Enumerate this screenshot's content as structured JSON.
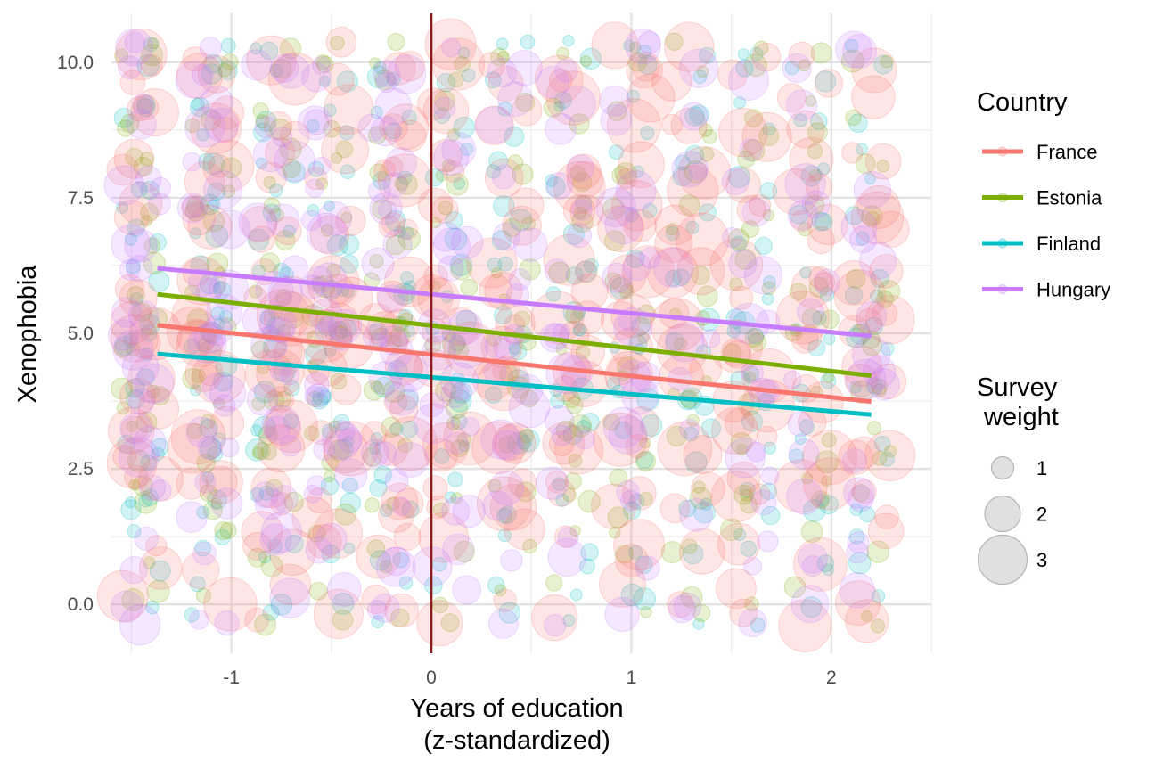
{
  "chart_data": {
    "type": "scatter",
    "title": "",
    "xlabel_line1": "Years of education",
    "xlabel_line2": "(z-standardized)",
    "ylabel": "Xenophobia",
    "xlim": [
      -1.6,
      2.5
    ],
    "ylim": [
      -0.9,
      10.9
    ],
    "x_ticks": [
      -1,
      0,
      1,
      2
    ],
    "x_tick_labels": [
      "-1",
      "0",
      "1",
      "2"
    ],
    "y_ticks": [
      0,
      2.5,
      5,
      7.5,
      10
    ],
    "y_tick_labels": [
      "0.0",
      "2.5",
      "5.0",
      "7.5",
      "10.0"
    ],
    "x_education_levels": [
      -1.45,
      -1.1,
      -0.78,
      -0.5,
      -0.2,
      0.1,
      0.4,
      0.7,
      1.0,
      1.3,
      1.6,
      1.9,
      2.2
    ],
    "y_xenophobia_levels": [
      0,
      1,
      2,
      3,
      4,
      5,
      6,
      7,
      8,
      9,
      10
    ],
    "vertical_reference_line": {
      "x": 0,
      "color": "#8B1A1A"
    },
    "series": [
      {
        "name": "France",
        "color": "#F8766D",
        "fit_line": {
          "x": [
            -1.37,
            2.2
          ],
          "y": [
            5.15,
            3.74
          ]
        }
      },
      {
        "name": "Estonia",
        "color": "#7CAE00",
        "fit_line": {
          "x": [
            -1.37,
            2.2
          ],
          "y": [
            5.72,
            4.22
          ]
        }
      },
      {
        "name": "Finland",
        "color": "#00BFC4",
        "fit_line": {
          "x": [
            -1.37,
            2.2
          ],
          "y": [
            4.62,
            3.5
          ]
        }
      },
      {
        "name": "Hungary",
        "color": "#C77CFF",
        "fit_line": {
          "x": [
            -1.37,
            2.2
          ],
          "y": [
            6.2,
            4.95
          ]
        }
      }
    ],
    "legend": {
      "color_title": "Country",
      "size_title_line1": "Survey",
      "size_title_line2": "weight",
      "size_values": [
        1,
        2,
        3
      ],
      "size_labels": [
        "1",
        "2",
        "3"
      ],
      "position": "right"
    }
  }
}
